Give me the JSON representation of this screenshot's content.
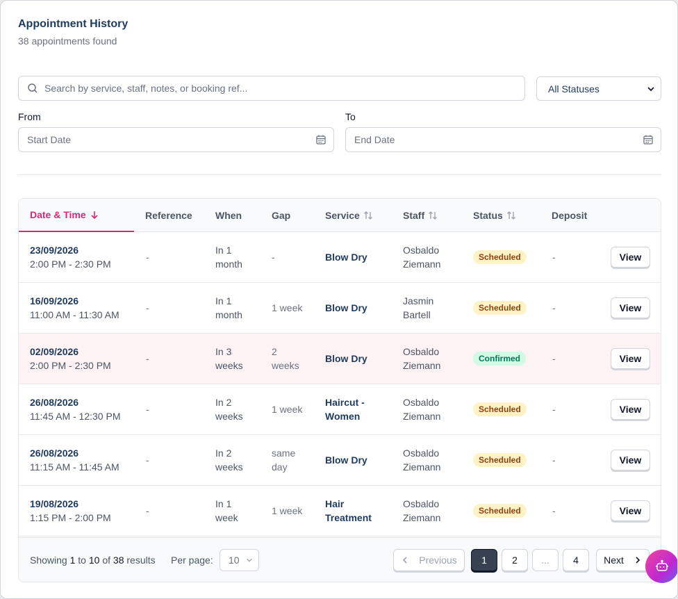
{
  "header": {
    "title": "Appointment History",
    "count_text": "38 appointments found"
  },
  "filters": {
    "search_placeholder": "Search by service, staff, notes, or booking ref...",
    "status_value": "All Statuses",
    "from_label": "From",
    "from_placeholder": "Start Date",
    "to_label": "To",
    "to_placeholder": "End Date"
  },
  "table": {
    "columns": [
      "Date & Time",
      "Reference",
      "When",
      "Gap",
      "Service",
      "Staff",
      "Status",
      "Deposit"
    ],
    "rows": [
      {
        "date": "23/09/2026",
        "time": "2:00 PM - 2:30 PM",
        "reference": "-",
        "when1": "In 1",
        "when2": "month",
        "gap1": "-",
        "gap2": "",
        "service1": "Blow Dry",
        "service2": "",
        "staff1": "Osbaldo",
        "staff2": "Ziemann",
        "status": "Scheduled",
        "deposit": "-",
        "action": "View"
      },
      {
        "date": "16/09/2026",
        "time": "11:00 AM - 11:30 AM",
        "reference": "-",
        "when1": "In 1",
        "when2": "month",
        "gap1": "1 week",
        "gap2": "",
        "service1": "Blow Dry",
        "service2": "",
        "staff1": "Jasmin",
        "staff2": "Bartell",
        "status": "Scheduled",
        "deposit": "-",
        "action": "View"
      },
      {
        "date": "02/09/2026",
        "time": "2:00 PM - 2:30 PM",
        "reference": "-",
        "when1": "In 3",
        "when2": "weeks",
        "gap1": "2",
        "gap2": "weeks",
        "service1": "Blow Dry",
        "service2": "",
        "staff1": "Osbaldo",
        "staff2": "Ziemann",
        "status": "Confirmed",
        "deposit": "-",
        "action": "View"
      },
      {
        "date": "26/08/2026",
        "time": "11:45 AM - 12:30 PM",
        "reference": "-",
        "when1": "In 2",
        "when2": "weeks",
        "gap1": "1 week",
        "gap2": "",
        "service1": "Haircut -",
        "service2": "Women",
        "staff1": "Osbaldo",
        "staff2": "Ziemann",
        "status": "Scheduled",
        "deposit": "-",
        "action": "View"
      },
      {
        "date": "26/08/2026",
        "time": "11:15 AM - 11:45 AM",
        "reference": "-",
        "when1": "In 2",
        "when2": "weeks",
        "gap1": "same",
        "gap2": "day",
        "service1": "Blow Dry",
        "service2": "",
        "staff1": "Osbaldo",
        "staff2": "Ziemann",
        "status": "Scheduled",
        "deposit": "-",
        "action": "View"
      },
      {
        "date": "19/08/2026",
        "time": "1:15 PM - 2:00 PM",
        "reference": "-",
        "when1": "In 1",
        "when2": "week",
        "gap1": "1 week",
        "gap2": "",
        "service1": "Hair",
        "service2": "Treatment",
        "staff1": "Osbaldo",
        "staff2": "Ziemann",
        "status": "Scheduled",
        "deposit": "-",
        "action": "View"
      }
    ]
  },
  "pagination": {
    "showing_prefix": "Showing",
    "from": "1",
    "to_word": "to",
    "to": "10",
    "of_word": "of",
    "total": "38",
    "suffix": "results",
    "per_page_label": "Per page:",
    "per_page_value": "10",
    "previous": "Previous",
    "pages": [
      "1",
      "2",
      "...",
      "4"
    ],
    "next": "Next"
  },
  "icons": {
    "search": "search-icon",
    "calendar": "calendar-icon",
    "sort": "sort-icon",
    "bot": "bot-icon"
  },
  "colors": {
    "accent": "#db2777",
    "navy": "#1e3a5f",
    "scheduled_bg": "#fef3c7",
    "confirmed_bg": "#d1fae5"
  }
}
